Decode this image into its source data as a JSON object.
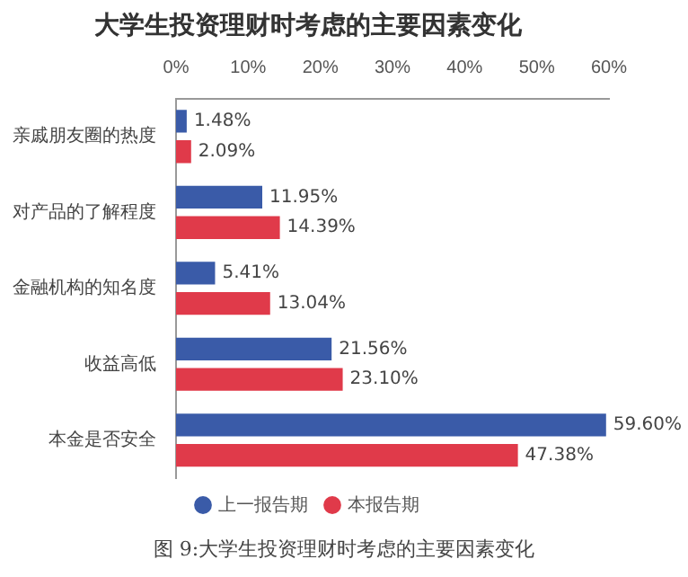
{
  "chart_data": {
    "type": "bar",
    "orientation": "horizontal",
    "title": "大学生投资理财时考虑的主要因素变化",
    "categories": [
      "亲戚朋友圈的热度",
      "对产品的了解程度",
      "金融机构的知名度",
      "收益高低",
      "本金是否安全"
    ],
    "series": [
      {
        "name": "上一报告期",
        "color": "#3a5ba8",
        "values": [
          1.48,
          11.95,
          5.41,
          21.56,
          59.6
        ],
        "value_labels": [
          "1.48%",
          "11.95%",
          "5.41%",
          "21.56%",
          "59.60%"
        ]
      },
      {
        "name": "本报告期",
        "color": "#e03a4a",
        "values": [
          2.09,
          14.39,
          13.04,
          23.1,
          47.38
        ],
        "value_labels": [
          "2.09%",
          "14.39%",
          "13.04%",
          "23.10%",
          "47.38%"
        ]
      }
    ],
    "xlim": [
      0,
      60
    ],
    "xticks": [
      {
        "value": 0,
        "label": "0%"
      },
      {
        "value": 10,
        "label": "10%"
      },
      {
        "value": 20,
        "label": "20%"
      },
      {
        "value": 30,
        "label": "30%"
      },
      {
        "value": 40,
        "label": "40%"
      },
      {
        "value": 50,
        "label": "50%"
      },
      {
        "value": 60,
        "label": "60%"
      }
    ],
    "grid": false,
    "legend": "bottom",
    "annotations": [
      "图 9:大学生投资理财时考虑的主要因素变化"
    ]
  }
}
